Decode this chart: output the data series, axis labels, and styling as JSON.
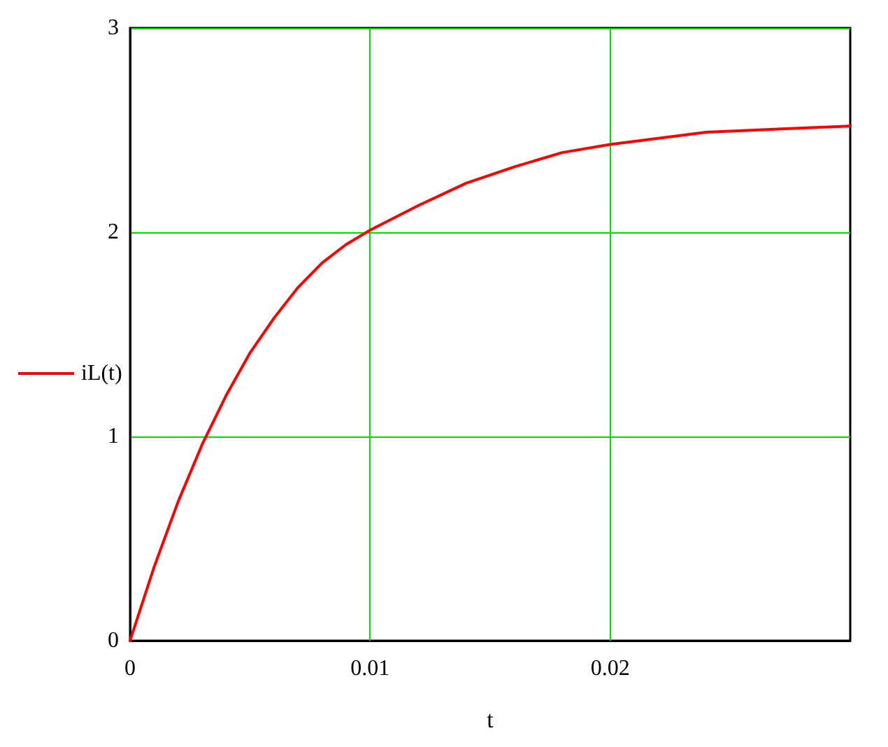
{
  "chart_data": {
    "type": "line",
    "xlabel": "t",
    "legend": "left",
    "grid": true,
    "marker": "none",
    "line_style": "solid",
    "xlim": [
      0,
      0.03
    ],
    "xticks": [
      0,
      0.01,
      0.02
    ],
    "ylim": [
      0,
      3
    ],
    "yticks": [
      0,
      1,
      2,
      3
    ],
    "series": [
      {
        "name": "iL(t)",
        "color": "#ff0000",
        "x": [
          0,
          0.001,
          0.002,
          0.003,
          0.004,
          0.005,
          0.006,
          0.007,
          0.008,
          0.009,
          0.01,
          0.012,
          0.014,
          0.016,
          0.018,
          0.02,
          0.022,
          0.024,
          0.026,
          0.028,
          0.03
        ],
        "values": [
          0,
          0.36,
          0.68,
          0.96,
          1.2,
          1.41,
          1.58,
          1.73,
          1.85,
          1.94,
          2.01,
          2.13,
          2.24,
          2.32,
          2.39,
          2.43,
          2.46,
          2.49,
          2.5,
          2.51,
          2.52
        ]
      }
    ]
  }
}
